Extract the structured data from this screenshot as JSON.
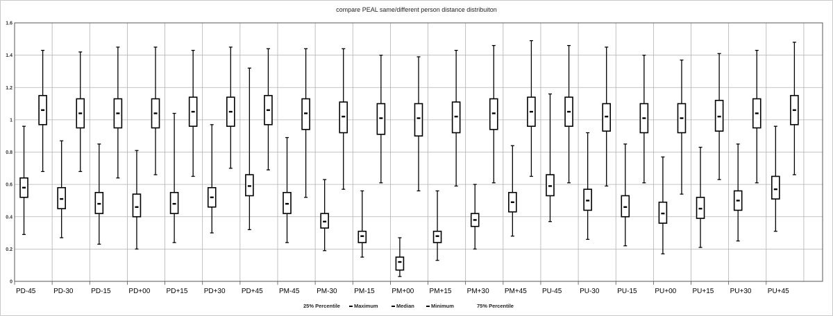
{
  "chart_data": {
    "type": "boxplot",
    "title": "compare PEAL same/different person distance distribuiton",
    "ylim": [
      0,
      1.6
    ],
    "yticks": [
      "0",
      "0.2",
      "0.4",
      "0.6",
      "0.8",
      "1",
      "1.2",
      "1.4",
      "1.6"
    ],
    "categories": [
      "PD-45",
      "PD-30",
      "PD-15",
      "PD+00",
      "PD+15",
      "PD+30",
      "PD+45",
      "PM-45",
      "PM-30",
      "PM-15",
      "PM+00",
      "PM+15",
      "PM+30",
      "PM+45",
      "PU-45",
      "PU-30",
      "PU-15",
      "PU+00",
      "PU+15",
      "PU+30",
      "PU+45"
    ],
    "legend": [
      "25% Percentile",
      "Maximum",
      "Median",
      "Minimum",
      "75% Percentile"
    ],
    "grid": true,
    "boxes": [
      {
        "category": "PD-45",
        "group": "same",
        "min": 0.29,
        "q1": 0.52,
        "median": 0.58,
        "q3": 0.64,
        "max": 0.96
      },
      {
        "category": "PD-45",
        "group": "different",
        "min": 0.68,
        "q1": 0.97,
        "median": 1.06,
        "q3": 1.15,
        "max": 1.43
      },
      {
        "category": "PD-30",
        "group": "same",
        "min": 0.27,
        "q1": 0.45,
        "median": 0.51,
        "q3": 0.58,
        "max": 0.87
      },
      {
        "category": "PD-30",
        "group": "different",
        "min": 0.68,
        "q1": 0.95,
        "median": 1.04,
        "q3": 1.13,
        "max": 1.42
      },
      {
        "category": "PD-15",
        "group": "same",
        "min": 0.23,
        "q1": 0.42,
        "median": 0.48,
        "q3": 0.55,
        "max": 0.85
      },
      {
        "category": "PD-15",
        "group": "different",
        "min": 0.64,
        "q1": 0.95,
        "median": 1.04,
        "q3": 1.13,
        "max": 1.45
      },
      {
        "category": "PD+00",
        "group": "same",
        "min": 0.2,
        "q1": 0.4,
        "median": 0.46,
        "q3": 0.54,
        "max": 0.81
      },
      {
        "category": "PD+00",
        "group": "different",
        "min": 0.66,
        "q1": 0.95,
        "median": 1.04,
        "q3": 1.13,
        "max": 1.45
      },
      {
        "category": "PD+15",
        "group": "same",
        "min": 0.24,
        "q1": 0.42,
        "median": 0.48,
        "q3": 0.55,
        "max": 1.04
      },
      {
        "category": "PD+15",
        "group": "different",
        "min": 0.65,
        "q1": 0.96,
        "median": 1.05,
        "q3": 1.14,
        "max": 1.43
      },
      {
        "category": "PD+30",
        "group": "same",
        "min": 0.3,
        "q1": 0.46,
        "median": 0.52,
        "q3": 0.58,
        "max": 0.97
      },
      {
        "category": "PD+30",
        "group": "different",
        "min": 0.7,
        "q1": 0.96,
        "median": 1.05,
        "q3": 1.14,
        "max": 1.45
      },
      {
        "category": "PD+45",
        "group": "same",
        "min": 0.32,
        "q1": 0.53,
        "median": 0.59,
        "q3": 0.66,
        "max": 1.32
      },
      {
        "category": "PD+45",
        "group": "different",
        "min": 0.69,
        "q1": 0.97,
        "median": 1.06,
        "q3": 1.15,
        "max": 1.44
      },
      {
        "category": "PM-45",
        "group": "same",
        "min": 0.24,
        "q1": 0.42,
        "median": 0.48,
        "q3": 0.55,
        "max": 0.89
      },
      {
        "category": "PM-45",
        "group": "different",
        "min": 0.52,
        "q1": 0.94,
        "median": 1.04,
        "q3": 1.13,
        "max": 1.44
      },
      {
        "category": "PM-30",
        "group": "same",
        "min": 0.19,
        "q1": 0.33,
        "median": 0.37,
        "q3": 0.42,
        "max": 0.63
      },
      {
        "category": "PM-30",
        "group": "different",
        "min": 0.57,
        "q1": 0.92,
        "median": 1.02,
        "q3": 1.11,
        "max": 1.44
      },
      {
        "category": "PM-15",
        "group": "same",
        "min": 0.15,
        "q1": 0.24,
        "median": 0.28,
        "q3": 0.31,
        "max": 0.56
      },
      {
        "category": "PM-15",
        "group": "different",
        "min": 0.61,
        "q1": 0.91,
        "median": 1.01,
        "q3": 1.1,
        "max": 1.4
      },
      {
        "category": "PM+00",
        "group": "same",
        "min": 0.03,
        "q1": 0.07,
        "median": 0.12,
        "q3": 0.15,
        "max": 0.27
      },
      {
        "category": "PM+00",
        "group": "different",
        "min": 0.56,
        "q1": 0.9,
        "median": 1.01,
        "q3": 1.1,
        "max": 1.39
      },
      {
        "category": "PM+15",
        "group": "same",
        "min": 0.13,
        "q1": 0.24,
        "median": 0.28,
        "q3": 0.31,
        "max": 0.56
      },
      {
        "category": "PM+15",
        "group": "different",
        "min": 0.59,
        "q1": 0.92,
        "median": 1.02,
        "q3": 1.11,
        "max": 1.43
      },
      {
        "category": "PM+30",
        "group": "same",
        "min": 0.2,
        "q1": 0.34,
        "median": 0.38,
        "q3": 0.42,
        "max": 0.6
      },
      {
        "category": "PM+30",
        "group": "different",
        "min": 0.61,
        "q1": 0.94,
        "median": 1.04,
        "q3": 1.13,
        "max": 1.46
      },
      {
        "category": "PM+45",
        "group": "same",
        "min": 0.28,
        "q1": 0.43,
        "median": 0.49,
        "q3": 0.55,
        "max": 0.84
      },
      {
        "category": "PM+45",
        "group": "different",
        "min": 0.65,
        "q1": 0.96,
        "median": 1.05,
        "q3": 1.14,
        "max": 1.49
      },
      {
        "category": "PU-45",
        "group": "same",
        "min": 0.37,
        "q1": 0.53,
        "median": 0.59,
        "q3": 0.66,
        "max": 1.16
      },
      {
        "category": "PU-45",
        "group": "different",
        "min": 0.61,
        "q1": 0.96,
        "median": 1.05,
        "q3": 1.14,
        "max": 1.46
      },
      {
        "category": "PU-30",
        "group": "same",
        "min": 0.26,
        "q1": 0.44,
        "median": 0.5,
        "q3": 0.57,
        "max": 0.92
      },
      {
        "category": "PU-30",
        "group": "different",
        "min": 0.59,
        "q1": 0.93,
        "median": 1.02,
        "q3": 1.1,
        "max": 1.45
      },
      {
        "category": "PU-15",
        "group": "same",
        "min": 0.22,
        "q1": 0.4,
        "median": 0.46,
        "q3": 0.53,
        "max": 0.85
      },
      {
        "category": "PU-15",
        "group": "different",
        "min": 0.61,
        "q1": 0.92,
        "median": 1.01,
        "q3": 1.1,
        "max": 1.4
      },
      {
        "category": "PU+00",
        "group": "same",
        "min": 0.17,
        "q1": 0.36,
        "median": 0.42,
        "q3": 0.49,
        "max": 0.77
      },
      {
        "category": "PU+00",
        "group": "different",
        "min": 0.54,
        "q1": 0.92,
        "median": 1.01,
        "q3": 1.1,
        "max": 1.37
      },
      {
        "category": "PU+15",
        "group": "same",
        "min": 0.21,
        "q1": 0.39,
        "median": 0.45,
        "q3": 0.52,
        "max": 0.83
      },
      {
        "category": "PU+15",
        "group": "different",
        "min": 0.63,
        "q1": 0.93,
        "median": 1.02,
        "q3": 1.12,
        "max": 1.41
      },
      {
        "category": "PU+30",
        "group": "same",
        "min": 0.25,
        "q1": 0.44,
        "median": 0.5,
        "q3": 0.56,
        "max": 0.85
      },
      {
        "category": "PU+30",
        "group": "different",
        "min": 0.61,
        "q1": 0.95,
        "median": 1.04,
        "q3": 1.13,
        "max": 1.43
      },
      {
        "category": "PU+45",
        "group": "same",
        "min": 0.31,
        "q1": 0.51,
        "median": 0.57,
        "q3": 0.65,
        "max": 0.96
      },
      {
        "category": "PU+45",
        "group": "different",
        "min": 0.66,
        "q1": 0.97,
        "median": 1.06,
        "q3": 1.15,
        "max": 1.48
      }
    ]
  },
  "colors": {
    "grid": "#b0b0b0",
    "axis": "#555555",
    "box": "#000000"
  }
}
